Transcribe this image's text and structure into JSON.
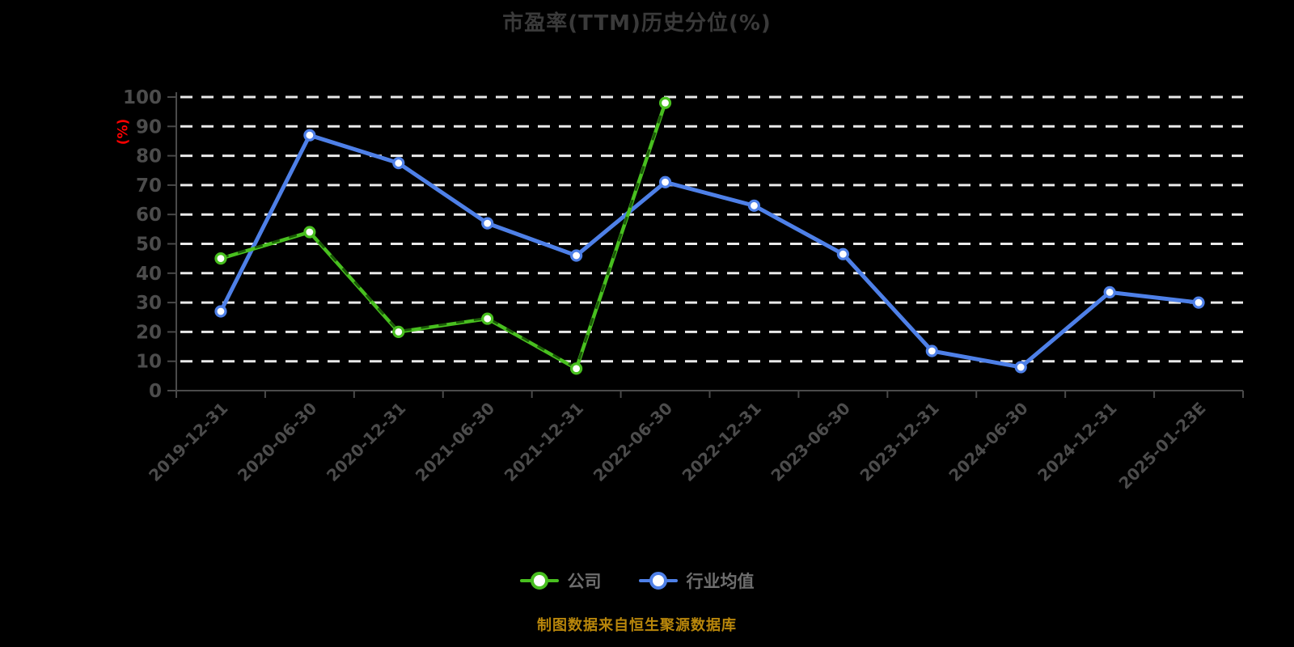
{
  "page": {
    "background": "#000000"
  },
  "chart_data": {
    "type": "line",
    "title": "市盈率(TTM)历史分位(%)",
    "ylabel": "(%)",
    "note": "制图数据来自恒生聚源数据库",
    "ylim": [
      0,
      100
    ],
    "y_tick_step": 10,
    "grid": "horizontal-white-dashed",
    "legend_position": "bottom",
    "x_tick_label_rotation": -45,
    "categories": [
      "2019-12-31",
      "2020-06-30",
      "2020-12-31",
      "2021-06-30",
      "2021-12-31",
      "2022-06-30",
      "2022-12-31",
      "2023-06-30",
      "2023-12-31",
      "2024-06-30",
      "2024-12-31",
      "2025-01-23E"
    ],
    "series": [
      {
        "name": "行业均值",
        "color": "#4e80e8",
        "marker": "white-circle",
        "line_style": "solid",
        "values": [
          27,
          87,
          77.5,
          57,
          46,
          71,
          63,
          46.5,
          13.5,
          8,
          33.5,
          30
        ]
      },
      {
        "name": "公司",
        "color": "#48bf1f",
        "marker": "white-circle",
        "line_style": "solid-with-dark-dash-overlay",
        "values": [
          45,
          54,
          20,
          24.5,
          7.5,
          98,
          null,
          null,
          null,
          null,
          null,
          null
        ]
      }
    ],
    "colors": {
      "background": "#000000",
      "title_text": "#3a3a3a",
      "axis_line": "#4a4a4a",
      "tick_label": "#4c4c4c",
      "grid_line": "#e9e9e9",
      "ylabel_text": "#ff0000",
      "legend_label": "#6e6e6e",
      "note_text": "#b8860b",
      "company_series": "#48bf1f",
      "industry_series": "#4e80e8"
    }
  }
}
